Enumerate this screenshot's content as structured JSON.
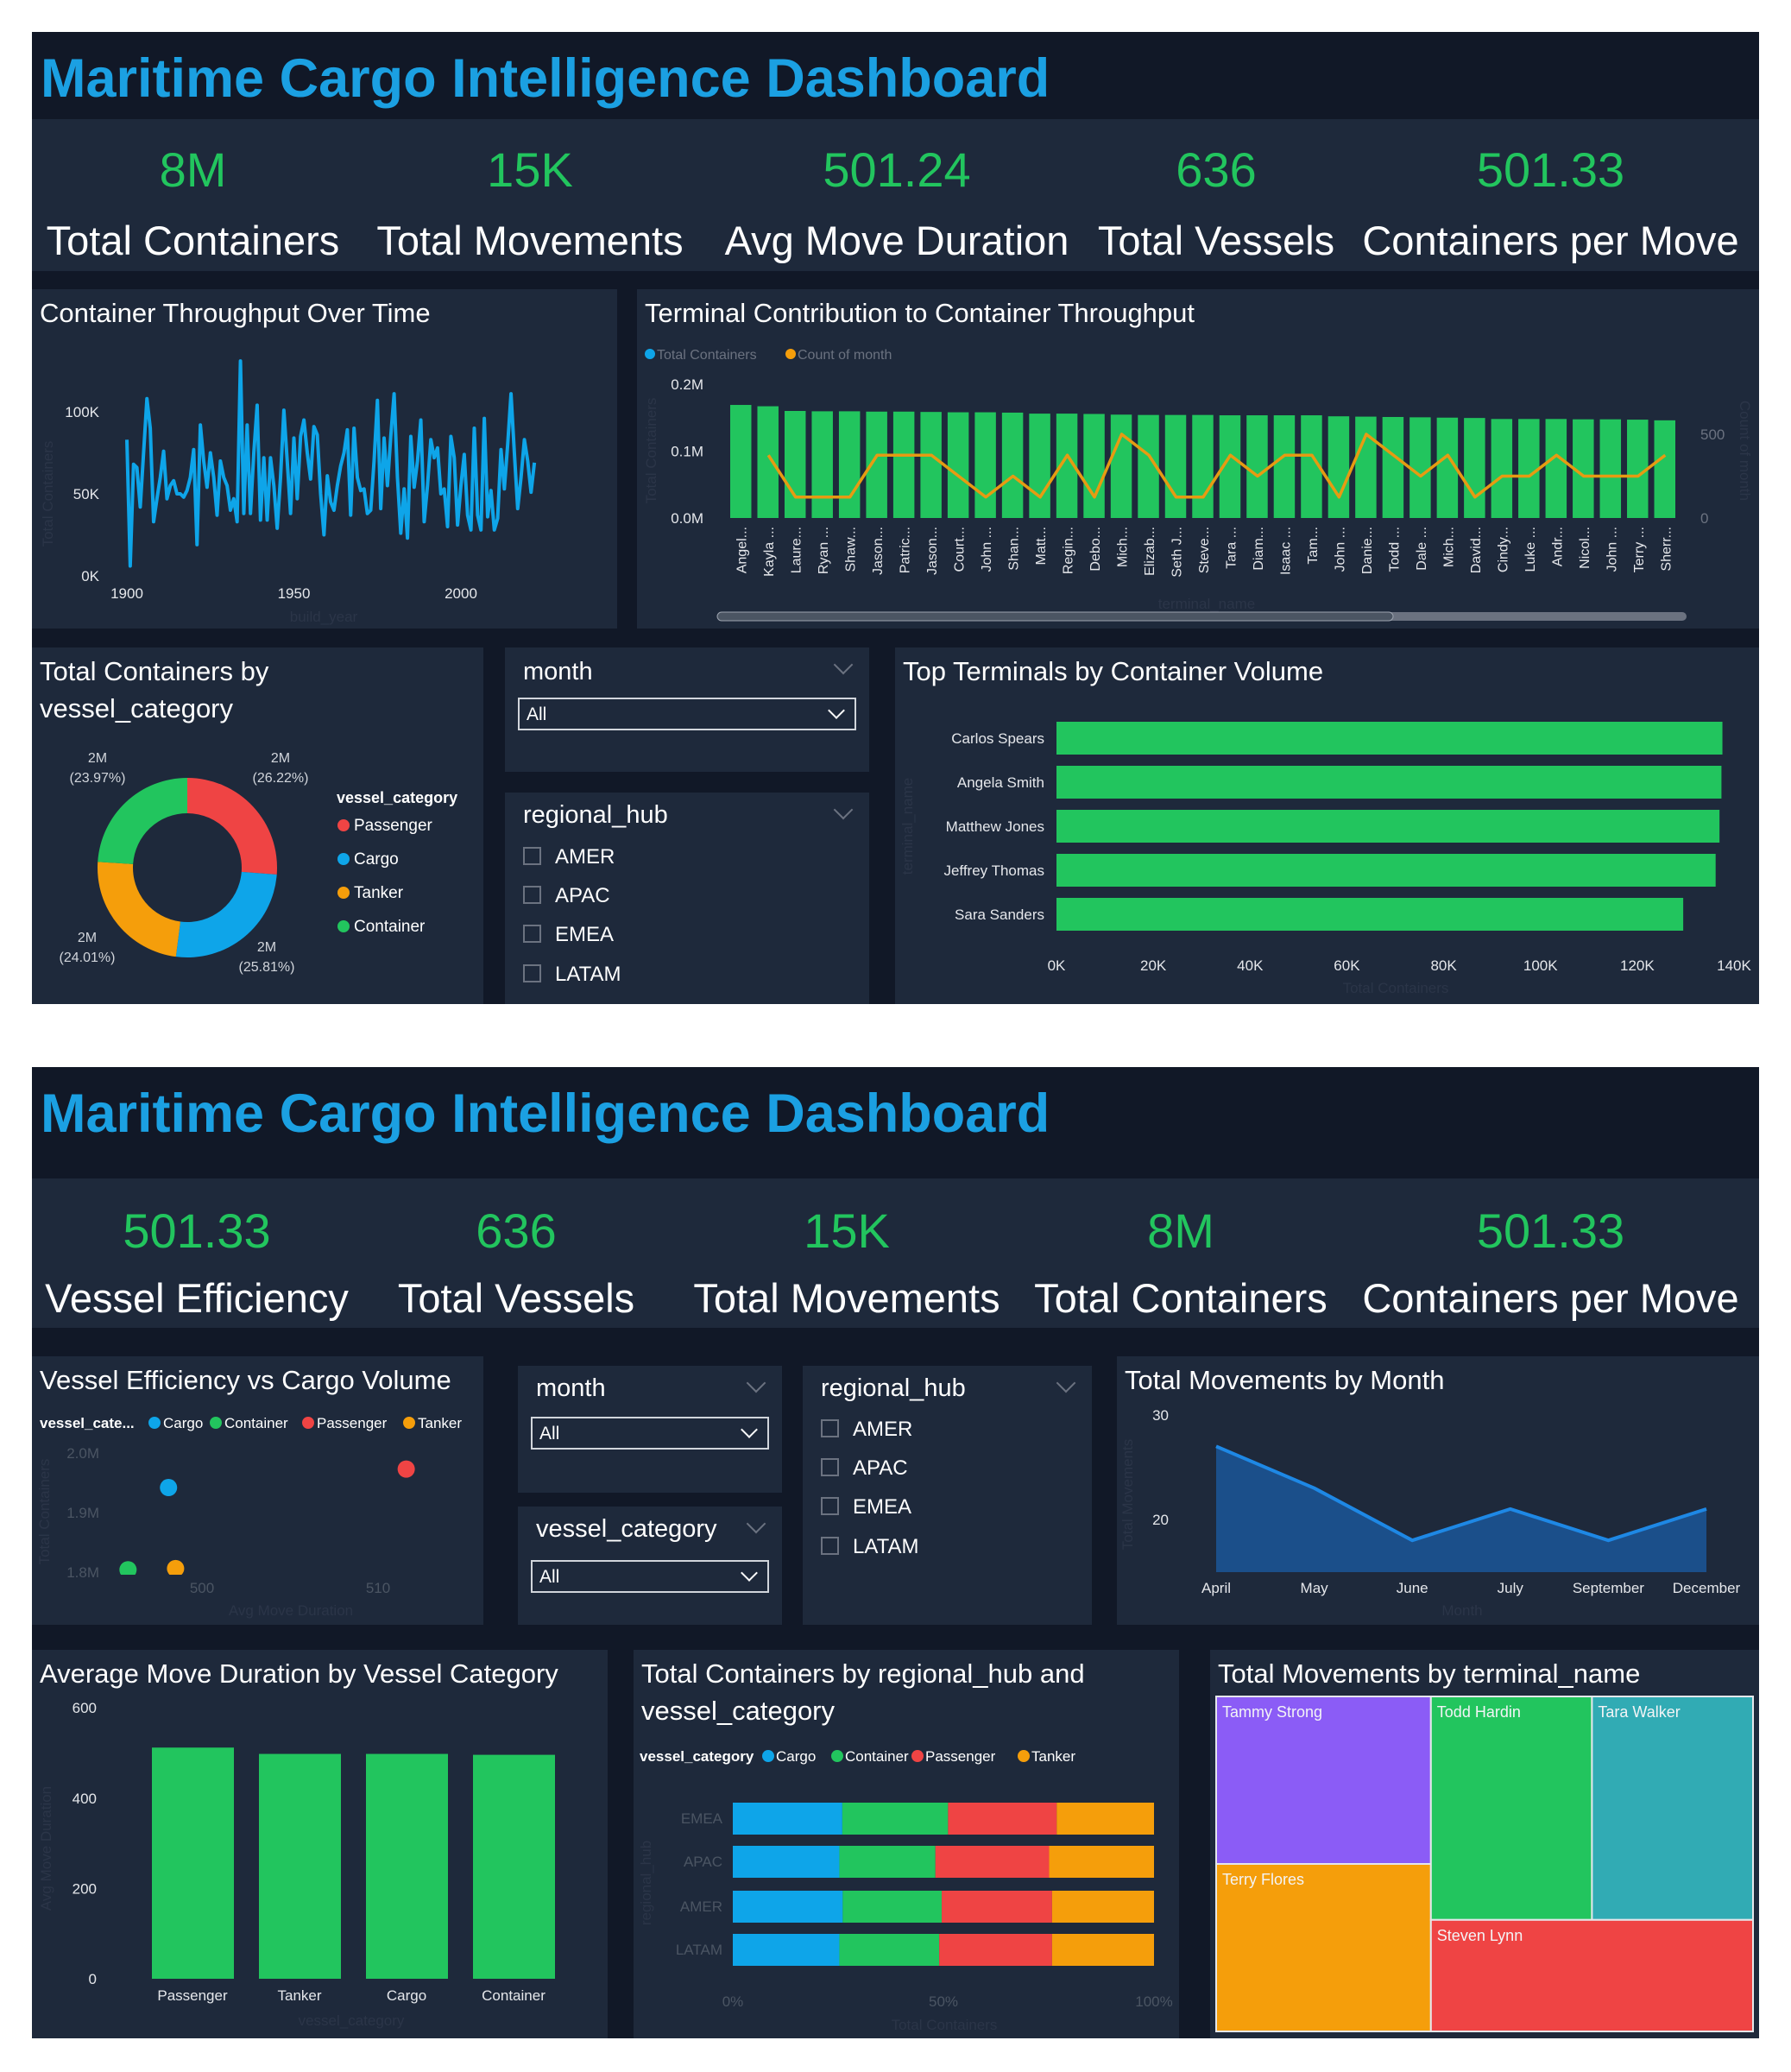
{
  "page1": {
    "title": "Maritime Cargo Intelligence Dashboard",
    "kpis": [
      {
        "value": "8M",
        "label": "Total Containers"
      },
      {
        "value": "15K",
        "label": "Total Movements"
      },
      {
        "value": "501.24",
        "label": "Avg Move Duration"
      },
      {
        "value": "636",
        "label": "Total Vessels"
      },
      {
        "value": "501.33",
        "label": "Containers per Move"
      }
    ],
    "throughput_title": "Container Throughput Over Time",
    "terminal_contrib_title": "Terminal Contribution to Container Throughput",
    "donut_title_line1": "Total Containers by",
    "donut_title_line2": "vessel_category",
    "top_terminals_title": "Top Terminals by Container Volume",
    "month_slicer": {
      "label": "month",
      "value": "All"
    },
    "hub_slicer": {
      "label": "regional_hub",
      "options": [
        "AMER",
        "APAC",
        "EMEA",
        "LATAM"
      ]
    }
  },
  "page2": {
    "title": "Maritime Cargo Intelligence Dashboard",
    "kpis": [
      {
        "value": "501.33",
        "label": "Vessel Efficiency"
      },
      {
        "value": "636",
        "label": "Total Vessels"
      },
      {
        "value": "15K",
        "label": "Total Movements"
      },
      {
        "value": "8M",
        "label": "Total Containers"
      },
      {
        "value": "501.33",
        "label": "Containers per Move"
      }
    ],
    "scatter_title": "Vessel Efficiency vs Cargo Volume",
    "month_slicer": {
      "label": "month",
      "value": "All"
    },
    "category_slicer": {
      "label": "vessel_category",
      "value": "All"
    },
    "hub_slicer": {
      "label": "regional_hub",
      "options": [
        "AMER",
        "APAC",
        "EMEA",
        "LATAM"
      ]
    },
    "movements_title": "Total Movements by Month",
    "avg_duration_title": "Average Move Duration by Vessel Category",
    "stacked_title_line1": "Total Containers by regional_hub and",
    "stacked_title_line2": "vessel_category",
    "treemap_title": "Total Movements by terminal_name"
  },
  "colors": {
    "title_blue": "#1ba0e2",
    "kpi_green": "#22c55e",
    "bar_green": "#22c55e",
    "cargo": "#0ea5e9",
    "container": "#22c55e",
    "passenger": "#ef4444",
    "tanker": "#f59e0b",
    "line_orange": "#e69b12",
    "area_fill": "#1b4f8a",
    "area_line": "#1e88e5",
    "purple": "#8b5cf6",
    "teal": "#31abb4"
  },
  "chart_data": [
    {
      "type": "line",
      "xlabel": "build_year",
      "ylabel": "Total Containers",
      "xlim": [
        1900,
        2022
      ],
      "ylim": [
        0,
        140000
      ],
      "x_ticks": [
        {
          "value": 1900,
          "label": "1900"
        },
        {
          "value": 1950,
          "label": "1950"
        },
        {
          "value": 2000,
          "label": "2000"
        }
      ],
      "y_ticks": [
        {
          "value": 0,
          "label": "0K"
        },
        {
          "value": 50000,
          "label": "50K"
        },
        {
          "value": 100000,
          "label": "100K"
        }
      ],
      "points": [
        [
          1900,
          83000
        ],
        [
          1901,
          6000
        ],
        [
          1902,
          68000
        ],
        [
          1903,
          66000
        ],
        [
          1904,
          42000
        ],
        [
          1905,
          75000
        ],
        [
          1906,
          108000
        ],
        [
          1907,
          90000
        ],
        [
          1908,
          33000
        ],
        [
          1909,
          47000
        ],
        [
          1910,
          60000
        ],
        [
          1911,
          76000
        ],
        [
          1912,
          47000
        ],
        [
          1913,
          55000
        ],
        [
          1914,
          58000
        ],
        [
          1915,
          50000
        ],
        [
          1916,
          50000
        ],
        [
          1917,
          48000
        ],
        [
          1918,
          52000
        ],
        [
          1919,
          60000
        ],
        [
          1920,
          77000
        ],
        [
          1921,
          19000
        ],
        [
          1922,
          92000
        ],
        [
          1923,
          70000
        ],
        [
          1924,
          54000
        ],
        [
          1925,
          75000
        ],
        [
          1926,
          60000
        ],
        [
          1927,
          37000
        ],
        [
          1928,
          70000
        ],
        [
          1929,
          60000
        ],
        [
          1930,
          55000
        ],
        [
          1931,
          40000
        ],
        [
          1932,
          47000
        ],
        [
          1933,
          33000
        ],
        [
          1934,
          131000
        ],
        [
          1935,
          38000
        ],
        [
          1936,
          92000
        ],
        [
          1937,
          38000
        ],
        [
          1938,
          75000
        ],
        [
          1939,
          104000
        ],
        [
          1940,
          34000
        ],
        [
          1941,
          72000
        ],
        [
          1942,
          34000
        ],
        [
          1943,
          72000
        ],
        [
          1944,
          55000
        ],
        [
          1945,
          29000
        ],
        [
          1946,
          60000
        ],
        [
          1947,
          101000
        ],
        [
          1948,
          70000
        ],
        [
          1949,
          38000
        ],
        [
          1950,
          84000
        ],
        [
          1951,
          47000
        ],
        [
          1952,
          85000
        ],
        [
          1953,
          95000
        ],
        [
          1954,
          75000
        ],
        [
          1955,
          59000
        ],
        [
          1956,
          91000
        ],
        [
          1957,
          86000
        ],
        [
          1958,
          50000
        ],
        [
          1959,
          25000
        ],
        [
          1960,
          61000
        ],
        [
          1961,
          45000
        ],
        [
          1962,
          40000
        ],
        [
          1963,
          55000
        ],
        [
          1964,
          67000
        ],
        [
          1965,
          75000
        ],
        [
          1966,
          89000
        ],
        [
          1967,
          37000
        ],
        [
          1968,
          90000
        ],
        [
          1969,
          60000
        ],
        [
          1970,
          52000
        ],
        [
          1971,
          53000
        ],
        [
          1972,
          38000
        ],
        [
          1973,
          40000
        ],
        [
          1974,
          70000
        ],
        [
          1975,
          107000
        ],
        [
          1976,
          41000
        ],
        [
          1977,
          84000
        ],
        [
          1978,
          55000
        ],
        [
          1979,
          85000
        ],
        [
          1980,
          111000
        ],
        [
          1981,
          60000
        ],
        [
          1982,
          26000
        ],
        [
          1983,
          53000
        ],
        [
          1984,
          23000
        ],
        [
          1985,
          85000
        ],
        [
          1986,
          54000
        ],
        [
          1987,
          70000
        ],
        [
          1988,
          95000
        ],
        [
          1989,
          33000
        ],
        [
          1990,
          55000
        ],
        [
          1991,
          83000
        ],
        [
          1992,
          72000
        ],
        [
          1993,
          78000
        ],
        [
          1994,
          50000
        ],
        [
          1995,
          53000
        ],
        [
          1996,
          30000
        ],
        [
          1997,
          85000
        ],
        [
          1998,
          72000
        ],
        [
          1999,
          31000
        ],
        [
          2000,
          55000
        ],
        [
          2001,
          74000
        ],
        [
          2002,
          37000
        ],
        [
          2003,
          28000
        ],
        [
          2004,
          90000
        ],
        [
          2005,
          37000
        ],
        [
          2006,
          28000
        ],
        [
          2007,
          96000
        ],
        [
          2008,
          36000
        ],
        [
          2009,
          52000
        ],
        [
          2010,
          28000
        ],
        [
          2011,
          35000
        ],
        [
          2012,
          77000
        ],
        [
          2013,
          53000
        ],
        [
          2014,
          80000
        ],
        [
          2015,
          111000
        ],
        [
          2016,
          75000
        ],
        [
          2017,
          41000
        ],
        [
          2018,
          60000
        ],
        [
          2019,
          83000
        ],
        [
          2020,
          70000
        ],
        [
          2021,
          51000
        ],
        [
          2022,
          69000
        ]
      ]
    },
    {
      "type": "bar",
      "xlabel": "terminal_name",
      "ylabel": "Total Containers",
      "y2label": "Count of month",
      "ylim": [
        0,
        200000
      ],
      "y2lim": [
        0,
        500
      ],
      "y_ticks": [
        {
          "value": 0,
          "label": "0.0M"
        },
        {
          "value": 100000,
          "label": "0.1M"
        },
        {
          "value": 200000,
          "label": "0.2M"
        }
      ],
      "y2_ticks": [
        {
          "value": 0,
          "label": "0"
        },
        {
          "value": 500,
          "label": "500"
        }
      ],
      "legend": "top-left",
      "categories": [
        "Angel...",
        "Kayla ...",
        "Laure...",
        "Ryan ...",
        "Shaw...",
        "Jason...",
        "Patric...",
        "Jason...",
        "Court...",
        "John ...",
        "Shan...",
        "Matt...",
        "Regin...",
        "Debo...",
        "Mich...",
        "Elizab...",
        "Seth J...",
        "Steve...",
        "Tara ...",
        "Diam...",
        "Isaac ...",
        "Tam...",
        "John ...",
        "Danie...",
        "Todd ...",
        "Dale ...",
        "Mich...",
        "David...",
        "Cindy...",
        "Luke ...",
        "Andr...",
        "Nicol...",
        "John ...",
        "Terry ...",
        "Sherr..."
      ],
      "series": [
        {
          "name": "Total Containers",
          "type": "bar",
          "values": [
            169000,
            167000,
            160000,
            159500,
            159500,
            159000,
            159000,
            158500,
            158000,
            158000,
            157500,
            156000,
            156000,
            155500,
            154500,
            154000,
            154000,
            154000,
            153500,
            153500,
            153500,
            153500,
            152000,
            151500,
            151000,
            150500,
            150000,
            149500,
            148000,
            148000,
            148000,
            147500,
            147500,
            147000,
            146000
          ]
        },
        {
          "name": "Count of month",
          "type": "line",
          "axis": "right",
          "values": [
            null,
            375,
            125,
            125,
            125,
            375,
            375,
            375,
            250,
            125,
            250,
            125,
            375,
            125,
            500,
            375,
            125,
            125,
            375,
            250,
            375,
            375,
            125,
            500,
            375,
            250,
            375,
            125,
            250,
            250,
            375,
            250,
            250,
            250,
            375
          ]
        }
      ]
    },
    {
      "type": "pie",
      "donut": true,
      "legend_title": "vessel_category",
      "legend": "right",
      "categories": [
        "Passenger",
        "Cargo",
        "Tanker",
        "Container"
      ],
      "percent": [
        26.22,
        25.81,
        24.01,
        23.97
      ],
      "value_labels": [
        "2M",
        "2M",
        "2M",
        "2M"
      ],
      "percent_labels": [
        "(26.22%)",
        "(25.81%)",
        "(24.01%)",
        "(23.97%)"
      ]
    },
    {
      "type": "bar",
      "orientation": "horizontal",
      "xlabel": "Total Containers",
      "ylabel": "terminal_name",
      "xlim": [
        0,
        140000
      ],
      "x_ticks": [
        {
          "value": 0,
          "label": "0K"
        },
        {
          "value": 20000,
          "label": "20K"
        },
        {
          "value": 40000,
          "label": "40K"
        },
        {
          "value": 60000,
          "label": "60K"
        },
        {
          "value": 80000,
          "label": "80K"
        },
        {
          "value": 100000,
          "label": "100K"
        },
        {
          "value": 120000,
          "label": "120K"
        },
        {
          "value": 140000,
          "label": "140K"
        }
      ],
      "categories": [
        "Carlos Spears",
        "Angela Smith",
        "Matthew Jones",
        "Jeffrey Thomas",
        "Sara Sanders"
      ],
      "values": [
        137600,
        137400,
        137000,
        136200,
        129500
      ]
    },
    {
      "type": "scatter",
      "xlabel": "Avg Move Duration",
      "ylabel": "Total Containers",
      "legend_title": "vessel_cate...",
      "legend": "top-left",
      "x_ticks": [
        {
          "value": 500,
          "label": "500"
        },
        {
          "value": 510,
          "label": "510"
        }
      ],
      "y_ticks": [
        {
          "value": 1800000,
          "label": "1.8M"
        },
        {
          "value": 1900000,
          "label": "1.9M"
        },
        {
          "value": 2000000,
          "label": "2.0M"
        }
      ],
      "series": [
        {
          "name": "Cargo",
          "x": 498.1,
          "y": 1942000
        },
        {
          "name": "Container",
          "x": 495.8,
          "y": 1804000
        },
        {
          "name": "Passenger",
          "x": 511.6,
          "y": 1973000
        },
        {
          "name": "Tanker",
          "x": 498.5,
          "y": 1806000
        }
      ]
    },
    {
      "type": "area",
      "xlabel": "Month",
      "ylabel": "Total Movements",
      "y_ticks": [
        {
          "value": 20,
          "label": "20"
        },
        {
          "value": 30,
          "label": "30"
        }
      ],
      "categories": [
        "April",
        "May",
        "June",
        "July",
        "September",
        "December"
      ],
      "values": [
        27,
        23,
        18,
        21,
        18,
        21
      ]
    },
    {
      "type": "bar",
      "xlabel": "vessel_category",
      "ylabel": "Avg Move Duration",
      "ylim": [
        0,
        600
      ],
      "y_ticks": [
        {
          "value": 0,
          "label": "0"
        },
        {
          "value": 200,
          "label": "200"
        },
        {
          "value": 400,
          "label": "400"
        },
        {
          "value": 600,
          "label": "600"
        }
      ],
      "categories": [
        "Passenger",
        "Tanker",
        "Cargo",
        "Container"
      ],
      "values": [
        512,
        498,
        498,
        496
      ]
    },
    {
      "type": "bar",
      "stacked": "100%",
      "orientation": "horizontal",
      "xlabel": "Total Containers",
      "ylabel": "regional_hub",
      "legend_title": "vessel_category",
      "legend": "top-left",
      "x_ticks": [
        {
          "value": 0,
          "label": "0%"
        },
        {
          "value": 50,
          "label": "50%"
        },
        {
          "value": 100,
          "label": "100%"
        }
      ],
      "categories": [
        "EMEA",
        "APAC",
        "AMER",
        "LATAM"
      ],
      "series": [
        {
          "name": "Cargo",
          "values": [
            26.0,
            25.3,
            26.1,
            25.3
          ]
        },
        {
          "name": "Container",
          "values": [
            25.1,
            22.8,
            23.5,
            23.7
          ]
        },
        {
          "name": "Passenger",
          "values": [
            25.8,
            27.0,
            26.2,
            26.8
          ]
        },
        {
          "name": "Tanker",
          "values": [
            23.1,
            24.9,
            24.2,
            24.2
          ]
        }
      ]
    },
    {
      "type": "treemap",
      "categories": [
        "Tammy Strong",
        "Terry Flores",
        "Todd Hardin",
        "Tara Walker",
        "Steven Lynn"
      ]
    }
  ]
}
